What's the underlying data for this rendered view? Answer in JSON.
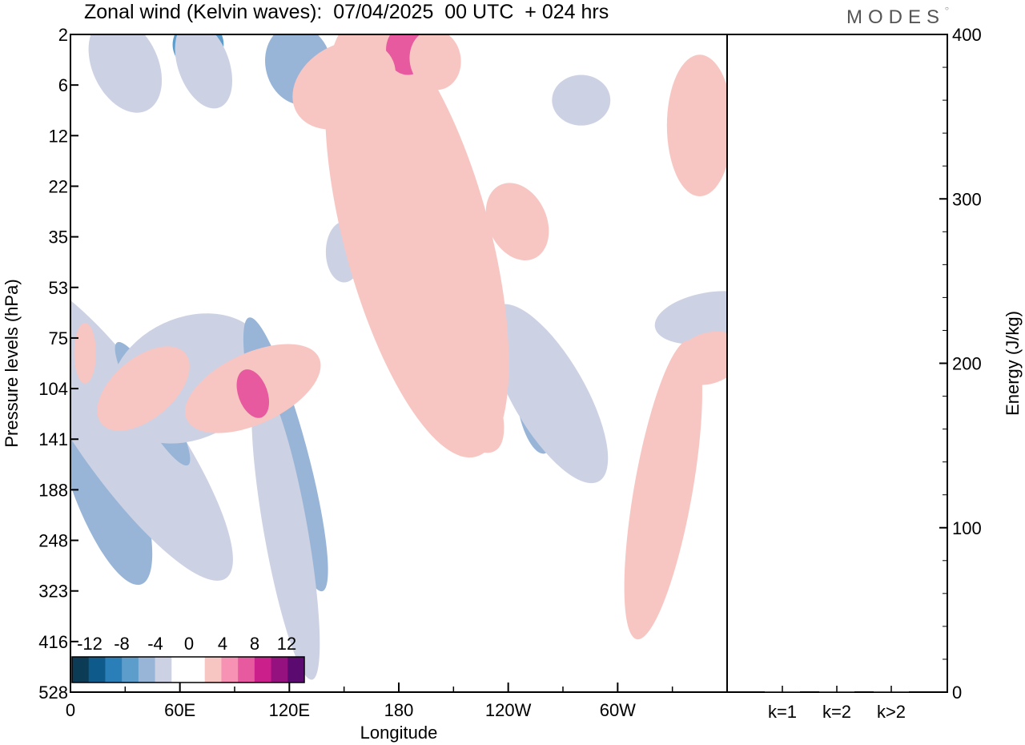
{
  "title": "Zonal wind (Kelvin waves):  07/04/2025  00 UTC  + 024 hrs",
  "logo": "MODES",
  "colors": {
    "neg": [
      "#0c3b56",
      "#0e5b8b",
      "#2a7fb8",
      "#5d9dcb",
      "#98b5d8",
      "#ccd1e4"
    ],
    "zero": "#ffffff",
    "pos": [
      "#f7c6c2",
      "#f792b5",
      "#e85a9f",
      "#cb1f8b",
      "#94117f",
      "#5b0a6f"
    ]
  },
  "chart_data": [
    {
      "type": "heatmap",
      "title": "Zonal wind (Kelvin waves):  07/04/2025  00 UTC  + 024 hrs",
      "xlabel": "Longitude",
      "ylabel": "Pressure levels (hPa)",
      "x_ticks": [
        "0",
        "60E",
        "120E",
        "180",
        "120W",
        "60W"
      ],
      "x_tick_degrees": [
        0,
        60,
        120,
        180,
        240,
        300
      ],
      "xlim": [
        0,
        360
      ],
      "y_ticks": [
        "2",
        "6",
        "12",
        "22",
        "35",
        "53",
        "75",
        "104",
        "141",
        "188",
        "248",
        "323",
        "416",
        "528"
      ],
      "colorbar_labels": [
        "-12",
        "-8",
        "-4",
        "0",
        "4",
        "8",
        "12"
      ],
      "colorbar_levels": [
        -14,
        -12,
        -10,
        -8,
        -6,
        -4,
        -2,
        2,
        4,
        6,
        8,
        10,
        12,
        14
      ],
      "features": [
        {
          "lon": 18,
          "lev": 8.6,
          "rx": 10,
          "ry": 1.0,
          "rot": 20,
          "v": -9
        },
        {
          "lon": 18,
          "lev": 8.8,
          "rx": 18,
          "ry": 2.2,
          "rot": 20,
          "v": -5
        },
        {
          "lon": 28,
          "lev": 7.8,
          "rx": 26,
          "ry": 3.6,
          "rot": 35,
          "v": -3
        },
        {
          "lon": 45,
          "lev": 7.3,
          "rx": 8,
          "ry": 1.4,
          "rot": 30,
          "v": -5
        },
        {
          "lon": 65,
          "lev": 6.8,
          "rx": 45,
          "ry": 1.2,
          "rot": 25,
          "v": -2.5
        },
        {
          "lon": 118,
          "lev": 8.3,
          "rx": 12,
          "ry": 2.8,
          "rot": 15,
          "v": -5
        },
        {
          "lon": 118,
          "lev": 9.8,
          "rx": 12,
          "ry": 3.0,
          "rot": 10,
          "v": -3
        },
        {
          "lon": 255,
          "lev": 7.3,
          "rx": 10,
          "ry": 1.0,
          "rot": 10,
          "v": -5
        },
        {
          "lon": 262,
          "lev": 7.1,
          "rx": 20,
          "ry": 2.0,
          "rot": 30,
          "v": -3
        },
        {
          "lon": 350,
          "lev": 5.6,
          "rx": 30,
          "ry": 0.5,
          "rot": 10,
          "v": -2.5
        },
        {
          "lon": 150,
          "lev": 4.3,
          "rx": 10,
          "ry": 0.6,
          "rot": 0,
          "v": -2.5
        },
        {
          "lon": 125,
          "lev": 0.6,
          "rx": 18,
          "ry": 0.8,
          "rot": 15,
          "v": -5
        },
        {
          "lon": 70,
          "lev": 0.2,
          "rx": 14,
          "ry": 0.5,
          "rot": 10,
          "v": -6
        },
        {
          "lon": 30,
          "lev": 0.6,
          "rx": 18,
          "ry": 1.0,
          "rot": 25,
          "v": -2.5
        },
        {
          "lon": 73,
          "lev": 0.6,
          "rx": 14,
          "ry": 0.9,
          "rot": 20,
          "v": -2.5
        },
        {
          "lon": 280,
          "lev": 1.3,
          "rx": 16,
          "ry": 0.5,
          "rot": 0,
          "v": -2.5
        },
        {
          "lon": 190,
          "lev": 4.0,
          "rx": 40,
          "ry": 4.5,
          "rot": 15,
          "v": 3
        },
        {
          "lon": 205,
          "lev": 6.5,
          "rx": 20,
          "ry": 2.0,
          "rot": 30,
          "v": 3
        },
        {
          "lon": 100,
          "lev": 7.0,
          "rx": 40,
          "ry": 0.7,
          "rot": 25,
          "v": 3
        },
        {
          "lon": 100,
          "lev": 7.1,
          "rx": 8,
          "ry": 0.5,
          "rot": 20,
          "v": 6
        },
        {
          "lon": 325,
          "lev": 9.0,
          "rx": 16,
          "ry": 3.0,
          "rot": -10,
          "v": 3
        },
        {
          "lon": 345,
          "lev": 1.8,
          "rx": 18,
          "ry": 1.4,
          "rot": 0,
          "v": 3
        },
        {
          "lon": 350,
          "lev": 6.4,
          "rx": 20,
          "ry": 0.5,
          "rot": 20,
          "v": 3
        },
        {
          "lon": 245,
          "lev": 3.7,
          "rx": 16,
          "ry": 0.8,
          "rot": 25,
          "v": 3
        },
        {
          "lon": 185,
          "lev": 0.3,
          "rx": 12,
          "ry": 0.5,
          "rot": 0,
          "v": 6
        },
        {
          "lon": 150,
          "lev": 1.0,
          "rx": 30,
          "ry": 0.8,
          "rot": 30,
          "v": 3
        },
        {
          "lon": 200,
          "lev": 0.5,
          "rx": 14,
          "ry": 0.6,
          "rot": 10,
          "v": 3
        },
        {
          "lon": 40,
          "lev": 7.0,
          "rx": 30,
          "ry": 0.6,
          "rot": 40,
          "v": 3
        },
        {
          "lon": 8,
          "lev": 6.3,
          "rx": 6,
          "ry": 0.6,
          "rot": 0,
          "v": 3
        }
      ]
    },
    {
      "type": "bar",
      "ylabel": "Energy (J/kg)",
      "categories": [
        "k=1",
        "k=2",
        "k>2"
      ],
      "values": [
        0.5,
        0.3,
        0.5
      ],
      "ylim": [
        0,
        400
      ],
      "y_ticks": [
        "0",
        "100",
        "200",
        "300",
        "400"
      ]
    }
  ]
}
